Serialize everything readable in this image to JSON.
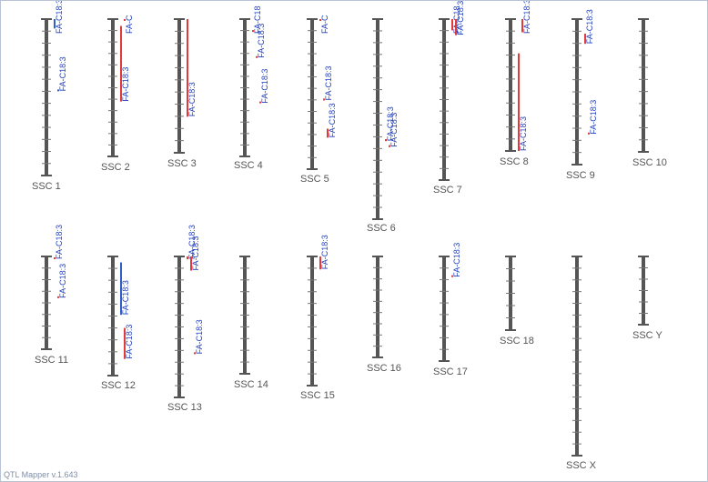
{
  "app": {
    "footer": "QTL Mapper v.1.643"
  },
  "colors": {
    "chromosome": "#555555",
    "tick": "#777777",
    "qtl_red": "#e23a3a",
    "qtl_blue": "#2f5fc9",
    "label": "#1f3fbf"
  },
  "trait_label": "FA-C18:3",
  "chromosomes": [
    {
      "id": "c1",
      "name": "SSC 1",
      "qtls": [
        {
          "start": 0,
          "end": 0.06,
          "color": "blue",
          "label": "FA-C18:3",
          "labeled": true
        },
        {
          "start": 0.45,
          "end": 0.46,
          "color": "blue",
          "label": "FA-C18:3",
          "labeled": true
        }
      ]
    },
    {
      "id": "c2",
      "name": "SSC 2",
      "qtls": [
        {
          "start": 0.05,
          "end": 0.6,
          "color": "red",
          "label": "FA-C18:3",
          "labeled": true
        },
        {
          "start": 0,
          "end": 0.01,
          "color": "red",
          "label": "FA-C",
          "labeled": true
        }
      ]
    },
    {
      "id": "c3",
      "name": "SSC 3",
      "qtls": [
        {
          "start": 0.0,
          "end": 0.73,
          "color": "red",
          "label": "FA-C18:3",
          "labeled": true
        }
      ]
    },
    {
      "id": "c4",
      "name": "SSC 4",
      "qtls": [
        {
          "start": 0.08,
          "end": 0.09,
          "color": "red",
          "label": "FA-C18",
          "labeled": true
        },
        {
          "start": 0.27,
          "end": 0.28,
          "color": "red",
          "label": "FA-C18:3",
          "labeled": true
        },
        {
          "start": 0.6,
          "end": 0.61,
          "color": "red",
          "label": "FA-C18:3",
          "labeled": true
        }
      ]
    },
    {
      "id": "c5",
      "name": "SSC 5",
      "qtls": [
        {
          "start": 0,
          "end": 0.01,
          "color": "red",
          "label": "FA-C",
          "labeled": true
        },
        {
          "start": 0.53,
          "end": 0.54,
          "color": "red",
          "label": "FA-C18:3",
          "labeled": true
        },
        {
          "start": 0.73,
          "end": 0.79,
          "color": "red",
          "label": "FA-C18:3",
          "labeled": true
        }
      ]
    },
    {
      "id": "c6",
      "name": "SSC 6",
      "qtls": [
        {
          "start": 0.6,
          "end": 0.61,
          "color": "red",
          "label": "FA-C18:3",
          "labeled": true
        },
        {
          "start": 0.63,
          "end": 0.64,
          "color": "red",
          "label": "FA-C18:3",
          "labeled": true
        }
      ]
    },
    {
      "id": "c7",
      "name": "SSC 7",
      "qtls": [
        {
          "start": 0.0,
          "end": 0.07,
          "color": "red",
          "label": "FA-C18",
          "labeled": true
        },
        {
          "start": 0.0,
          "end": 0.1,
          "color": "red",
          "label": "FA-C18:3",
          "labeled": true
        }
      ]
    },
    {
      "id": "c8",
      "name": "SSC 8",
      "qtls": [
        {
          "start": 0.26,
          "end": 1.0,
          "color": "red",
          "label": "FA-C18:3",
          "labeled": true
        },
        {
          "start": 0.0,
          "end": 0.1,
          "color": "red",
          "label": "FA-C18:3",
          "labeled": true
        }
      ]
    },
    {
      "id": "c9",
      "name": "SSC 9",
      "qtls": [
        {
          "start": 0.1,
          "end": 0.17,
          "color": "red",
          "label": "FA-C18:3",
          "labeled": true
        },
        {
          "start": 0.78,
          "end": 0.79,
          "color": "red",
          "label": "FA-C18:3",
          "labeled": true
        }
      ]
    },
    {
      "id": "c10",
      "name": "SSC 10",
      "qtls": []
    },
    {
      "id": "c11",
      "name": "SSC 11",
      "qtls": [
        {
          "start": 0.01,
          "end": 0.02,
          "color": "red",
          "label": "FA-C18:3",
          "labeled": true
        },
        {
          "start": 0.43,
          "end": 0.44,
          "color": "red",
          "label": "FA-C18:3",
          "labeled": true
        }
      ]
    },
    {
      "id": "c12",
      "name": "SSC 12",
      "qtls": [
        {
          "start": 0.05,
          "end": 0.49,
          "color": "blue",
          "label": "FA-C18:3",
          "labeled": true
        },
        {
          "start": 0.6,
          "end": 0.86,
          "color": "red",
          "label": "FA-C18:3",
          "labeled": true
        }
      ]
    },
    {
      "id": "c13",
      "name": "SSC 13",
      "qtls": [
        {
          "start": 0.0,
          "end": 0.02,
          "color": "red",
          "label": "FA-C18:3",
          "labeled": true
        },
        {
          "start": 0.0,
          "end": 0.1,
          "color": "red",
          "label": "FA-C18:3",
          "labeled": true
        },
        {
          "start": 0.68,
          "end": 0.69,
          "color": "red",
          "label": "FA-C18:3",
          "labeled": true
        }
      ]
    },
    {
      "id": "c14",
      "name": "SSC 14",
      "qtls": []
    },
    {
      "id": "c15",
      "name": "SSC 15",
      "qtls": [
        {
          "start": 0.0,
          "end": 0.1,
          "color": "red",
          "label": "FA-C18:3",
          "labeled": true
        }
      ]
    },
    {
      "id": "c16",
      "name": "SSC 16",
      "qtls": []
    },
    {
      "id": "c17",
      "name": "SSC 17",
      "qtls": [
        {
          "start": 0.18,
          "end": 0.19,
          "color": "red",
          "label": "FA-C18:3",
          "labeled": true
        }
      ]
    },
    {
      "id": "c18",
      "name": "SSC 18",
      "qtls": []
    },
    {
      "id": "cX",
      "name": "SSC X",
      "qtls": []
    },
    {
      "id": "cY",
      "name": "SSC Y",
      "qtls": []
    }
  ]
}
